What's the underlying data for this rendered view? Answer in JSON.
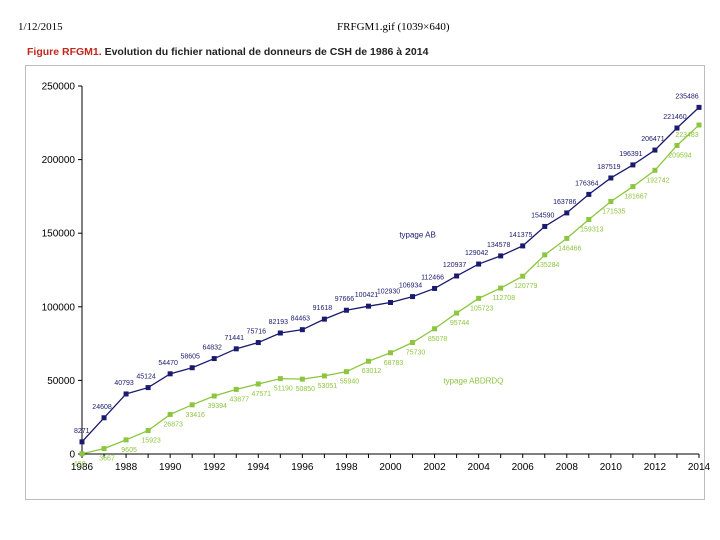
{
  "header": {
    "date": "1/12/2015",
    "file": "FRFGM1.gif (1039×640)"
  },
  "figure": {
    "label": "Figure RFGM1.",
    "title": " Evolution du fichier national de donneurs de CSH de 1986 à 2014"
  },
  "chart_data": {
    "type": "line",
    "title": "Evolution du fichier national de donneurs de CSH de 1986 à 2014",
    "xlabel": "",
    "ylabel": "",
    "xlim": [
      1986,
      2014
    ],
    "ylim": [
      0,
      250000
    ],
    "x_ticks": [
      "1986",
      "1988",
      "1990",
      "1992",
      "1994",
      "1996",
      "1998",
      "2000",
      "2002",
      "2004",
      "2006",
      "2008",
      "2010",
      "2012",
      "2014"
    ],
    "y_ticks": [
      "0",
      "50000",
      "100000",
      "150000",
      "200000",
      "250000"
    ],
    "grid": false,
    "legend": "inline labels",
    "x": [
      1986,
      1987,
      1988,
      1989,
      1990,
      1991,
      1992,
      1993,
      1994,
      1995,
      1996,
      1997,
      1998,
      1999,
      2000,
      2001,
      2002,
      2003,
      2004,
      2005,
      2006,
      2007,
      2008,
      2009,
      2010,
      2011,
      2012,
      2013,
      2014
    ],
    "series": [
      {
        "name": "typage AB",
        "color": "#1a1a6e",
        "values": [
          8271,
          24608,
          40793,
          45124,
          54470,
          58605,
          64832,
          71441,
          75716,
          82193,
          84463,
          91618,
          97666,
          100421,
          102930,
          106934,
          112466,
          120937,
          129042,
          134578,
          141375,
          154590,
          163786,
          176364,
          187519,
          196391,
          206471,
          221460,
          235486
        ],
        "labels": [
          "8271",
          "24608",
          "40793",
          "45124",
          "54470",
          "58605",
          "64832",
          "71441",
          "75716",
          "82193",
          "84463",
          "91618",
          "97666",
          "100421",
          "102930",
          "106934",
          "112466",
          "120937",
          "129042",
          "134578",
          "141375",
          "154590",
          "163786",
          "176364",
          "187519",
          "196391",
          "206471",
          "221460",
          "235486"
        ]
      },
      {
        "name": "typage ABDRDQ",
        "color": "#8cc63f",
        "values": [
          150,
          3667,
          9605,
          15923,
          26873,
          33416,
          39394,
          43877,
          47571,
          51190,
          50850,
          53051,
          55940,
          63012,
          68783,
          75730,
          85078,
          95744,
          105723,
          112708,
          120779,
          135284,
          146466,
          159313,
          171535,
          181667,
          192742,
          209594,
          223483
        ],
        "labels": [
          "150",
          "3667",
          "9605",
          "15923",
          "26873",
          "33416",
          "39394",
          "43877",
          "47571",
          "51190",
          "50850",
          "53051",
          "55940",
          "63012",
          "68783",
          "75730",
          "85078",
          "95744",
          "105723",
          "112708",
          "120779",
          "135284",
          "146466",
          "159313",
          "171535",
          "181667",
          "192742",
          "209594",
          "223483"
        ]
      }
    ]
  }
}
